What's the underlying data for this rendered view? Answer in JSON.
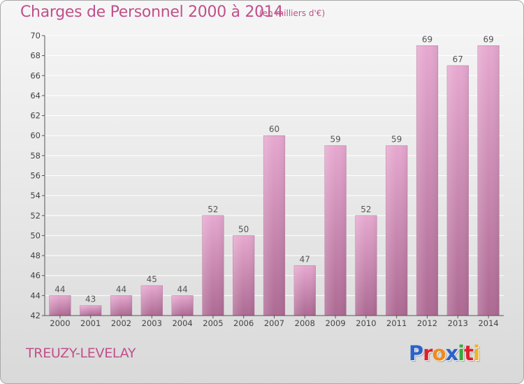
{
  "header": {
    "title": "Charges de Personnel 2000 à 2014",
    "subtitle": "(en milliers d'€)"
  },
  "footer": {
    "commune": "TREUZY-LEVELAY",
    "logo_text": "Proxiti",
    "logo_letters": [
      {
        "ch": "P",
        "color": "#2a62c9"
      },
      {
        "ch": "r",
        "color": "#e0202a"
      },
      {
        "ch": "o",
        "color": "#f08a1c"
      },
      {
        "ch": "x",
        "color": "#2a62c9"
      },
      {
        "ch": "i",
        "color": "#3aa83a"
      },
      {
        "ch": "t",
        "color": "#e0202a"
      },
      {
        "ch": "i",
        "color": "#f0b41c"
      }
    ]
  },
  "colors": {
    "title": "#c0508a",
    "bar_top": "#e6a8cf",
    "bar_bottom": "#ad6a93",
    "grid": "#ffffff"
  },
  "chart_data": {
    "type": "bar",
    "title": "Charges de Personnel 2000 à 2014",
    "subtitle": "(en milliers d'€)",
    "categories": [
      "2000",
      "2001",
      "2002",
      "2003",
      "2004",
      "2005",
      "2006",
      "2007",
      "2008",
      "2009",
      "2010",
      "2011",
      "2012",
      "2013",
      "2014"
    ],
    "values": [
      44,
      43,
      44,
      45,
      44,
      52,
      50,
      60,
      47,
      59,
      52,
      59,
      69,
      67,
      69
    ],
    "ylim": [
      42,
      70
    ],
    "yticks": [
      42,
      44,
      46,
      48,
      50,
      52,
      54,
      56,
      58,
      60,
      62,
      64,
      66,
      68,
      70
    ],
    "grid": true,
    "data_labels": true
  }
}
